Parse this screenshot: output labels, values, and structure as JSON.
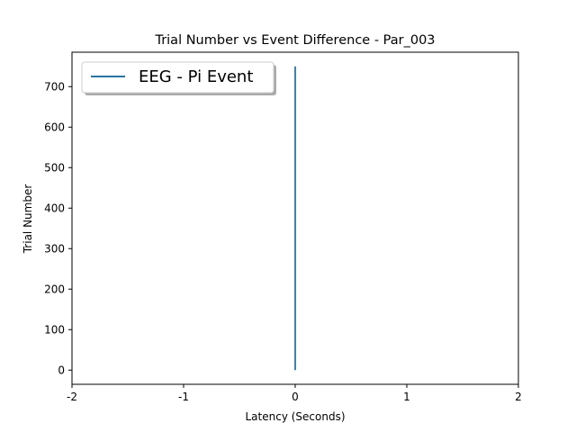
{
  "chart_data": {
    "type": "line",
    "title": "Trial Number vs Event Difference - Par_003",
    "xlabel": "Latency (Seconds)",
    "ylabel": "Trial Number",
    "xlim": [
      -2,
      2
    ],
    "ylim": [
      -35,
      785
    ],
    "xticks": [
      -2,
      -1,
      0,
      1,
      2
    ],
    "xtick_labels": [
      "-2",
      "-1",
      "0",
      "1",
      "2"
    ],
    "yticks": [
      0,
      100,
      200,
      300,
      400,
      500,
      600,
      700
    ],
    "ytick_labels": [
      "0",
      "100",
      "200",
      "300",
      "400",
      "500",
      "600",
      "700"
    ],
    "grid": false,
    "legend_position": "upper-left",
    "series": [
      {
        "name": "EEG - Pi Event",
        "color": "#1f77b4",
        "x": [
          0,
          0
        ],
        "y": [
          0,
          750
        ]
      }
    ]
  }
}
